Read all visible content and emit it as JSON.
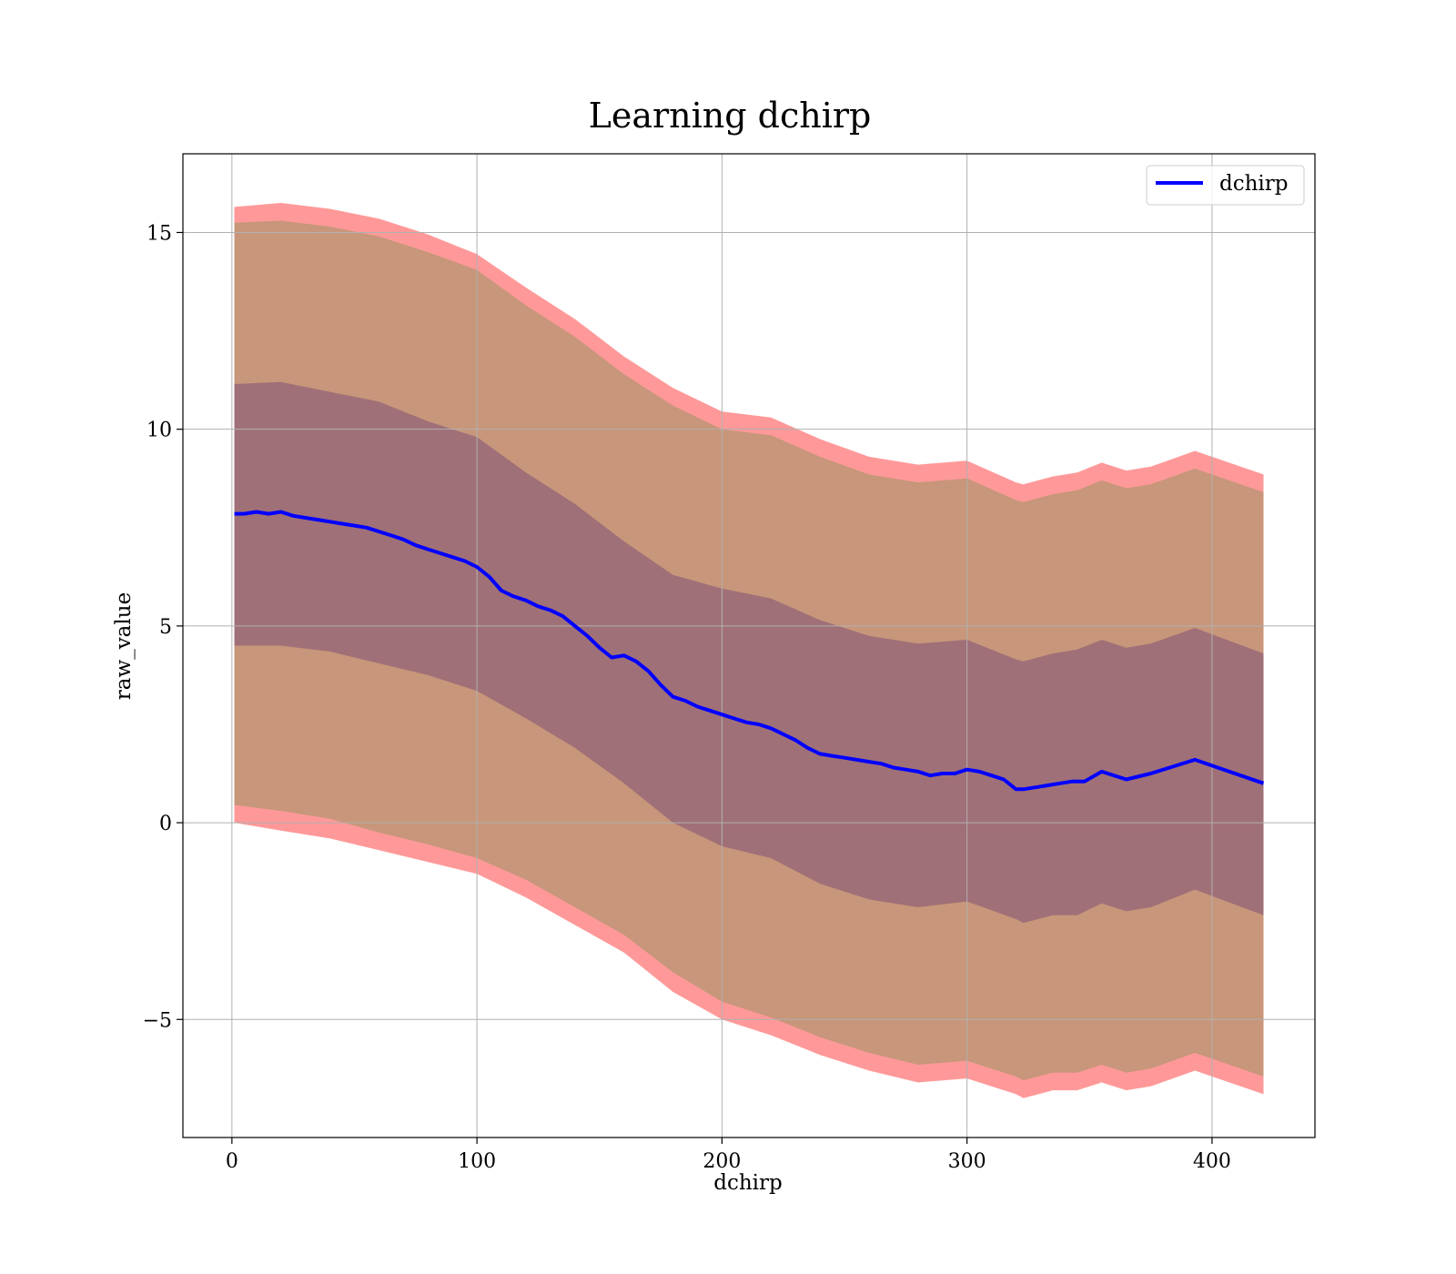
{
  "chart_data": {
    "type": "line",
    "title": "Learning dchirp",
    "xlabel": "dchirp",
    "ylabel": "raw_value",
    "xlim": [
      -20,
      442
    ],
    "ylim": [
      -8,
      17
    ],
    "xticks": [
      0,
      100,
      200,
      300,
      400
    ],
    "xtick_labels": [
      "0",
      "100",
      "200",
      "300",
      "400"
    ],
    "yticks": [
      -5,
      0,
      5,
      10,
      15
    ],
    "ytick_labels": [
      "−5",
      "0",
      "5",
      "10",
      "15"
    ],
    "grid": true,
    "legend_position": "top-right",
    "colors": {
      "line": "#0000ff",
      "outer_band": "#ff9999",
      "middle_band": "#c8967a",
      "inner_band": "#a07078",
      "grid": "#b0b0b0"
    },
    "series": [
      {
        "name": "dchirp",
        "x": [
          1,
          5,
          10,
          15,
          20,
          25,
          30,
          35,
          40,
          45,
          50,
          55,
          60,
          65,
          70,
          75,
          80,
          85,
          90,
          95,
          100,
          105,
          110,
          115,
          120,
          125,
          130,
          135,
          140,
          145,
          150,
          155,
          160,
          165,
          170,
          175,
          180,
          185,
          190,
          195,
          200,
          205,
          210,
          215,
          220,
          225,
          230,
          235,
          240,
          245,
          250,
          255,
          260,
          265,
          270,
          275,
          280,
          285,
          290,
          295,
          300,
          305,
          310,
          315,
          320,
          323,
          328,
          333,
          338,
          343,
          348,
          355,
          365,
          375,
          393,
          421
        ],
        "y": [
          7.85,
          7.85,
          7.9,
          7.85,
          7.9,
          7.8,
          7.75,
          7.7,
          7.65,
          7.6,
          7.55,
          7.5,
          7.4,
          7.3,
          7.2,
          7.05,
          6.95,
          6.85,
          6.75,
          6.65,
          6.5,
          6.25,
          5.9,
          5.75,
          5.65,
          5.5,
          5.4,
          5.25,
          5.0,
          4.75,
          4.45,
          4.2,
          4.25,
          4.1,
          3.85,
          3.5,
          3.2,
          3.1,
          2.95,
          2.85,
          2.75,
          2.65,
          2.55,
          2.5,
          2.4,
          2.25,
          2.1,
          1.9,
          1.75,
          1.7,
          1.65,
          1.6,
          1.55,
          1.5,
          1.4,
          1.35,
          1.3,
          1.2,
          1.25,
          1.25,
          1.35,
          1.3,
          1.2,
          1.1,
          0.85,
          0.85,
          0.9,
          0.95,
          1.0,
          1.05,
          1.05,
          1.3,
          1.1,
          1.25,
          1.6,
          1.0
        ]
      }
    ],
    "bands": [
      {
        "level": "outer",
        "x": [
          1,
          20,
          40,
          60,
          80,
          100,
          120,
          140,
          160,
          180,
          200,
          220,
          240,
          260,
          280,
          300,
          320,
          323,
          335,
          345,
          355,
          365,
          375,
          393,
          421
        ],
        "lower": [
          0.0,
          -0.2,
          -0.4,
          -0.7,
          -1.0,
          -1.3,
          -1.9,
          -2.6,
          -3.3,
          -4.3,
          -5.0,
          -5.4,
          -5.9,
          -6.3,
          -6.6,
          -6.5,
          -6.9,
          -7.0,
          -6.8,
          -6.8,
          -6.6,
          -6.8,
          -6.7,
          -6.3,
          -6.9
        ],
        "upper": [
          15.65,
          15.75,
          15.6,
          15.35,
          14.95,
          14.45,
          13.6,
          12.8,
          11.85,
          11.05,
          10.45,
          10.3,
          9.75,
          9.3,
          9.1,
          9.2,
          8.65,
          8.6,
          8.8,
          8.9,
          9.15,
          8.95,
          9.05,
          9.45,
          8.85
        ]
      },
      {
        "level": "middle",
        "x": [
          1,
          20,
          40,
          60,
          80,
          100,
          120,
          140,
          160,
          180,
          200,
          220,
          240,
          260,
          280,
          300,
          320,
          323,
          335,
          345,
          355,
          365,
          375,
          393,
          421
        ],
        "lower": [
          0.45,
          0.3,
          0.1,
          -0.25,
          -0.55,
          -0.9,
          -1.45,
          -2.15,
          -2.85,
          -3.8,
          -4.55,
          -4.95,
          -5.45,
          -5.85,
          -6.15,
          -6.05,
          -6.45,
          -6.55,
          -6.35,
          -6.35,
          -6.15,
          -6.35,
          -6.25,
          -5.85,
          -6.45
        ],
        "upper": [
          15.25,
          15.3,
          15.15,
          14.9,
          14.5,
          14.05,
          13.15,
          12.35,
          11.4,
          10.6,
          10.0,
          9.85,
          9.3,
          8.85,
          8.65,
          8.75,
          8.2,
          8.15,
          8.35,
          8.45,
          8.7,
          8.5,
          8.6,
          9.0,
          8.4
        ]
      },
      {
        "level": "inner",
        "x": [
          1,
          20,
          40,
          60,
          80,
          100,
          120,
          140,
          160,
          180,
          200,
          220,
          240,
          260,
          280,
          300,
          320,
          323,
          335,
          345,
          355,
          365,
          375,
          393,
          421
        ],
        "lower": [
          4.5,
          4.5,
          4.35,
          4.05,
          3.75,
          3.35,
          2.65,
          1.9,
          1.0,
          0.0,
          -0.6,
          -0.9,
          -1.55,
          -1.95,
          -2.15,
          -2.0,
          -2.45,
          -2.55,
          -2.35,
          -2.35,
          -2.05,
          -2.25,
          -2.15,
          -1.7,
          -2.35
        ],
        "upper": [
          11.15,
          11.2,
          10.95,
          10.7,
          10.2,
          9.8,
          8.9,
          8.1,
          7.15,
          6.3,
          5.95,
          5.7,
          5.15,
          4.75,
          4.55,
          4.65,
          4.15,
          4.1,
          4.3,
          4.4,
          4.65,
          4.45,
          4.55,
          4.95,
          4.3
        ]
      }
    ]
  }
}
